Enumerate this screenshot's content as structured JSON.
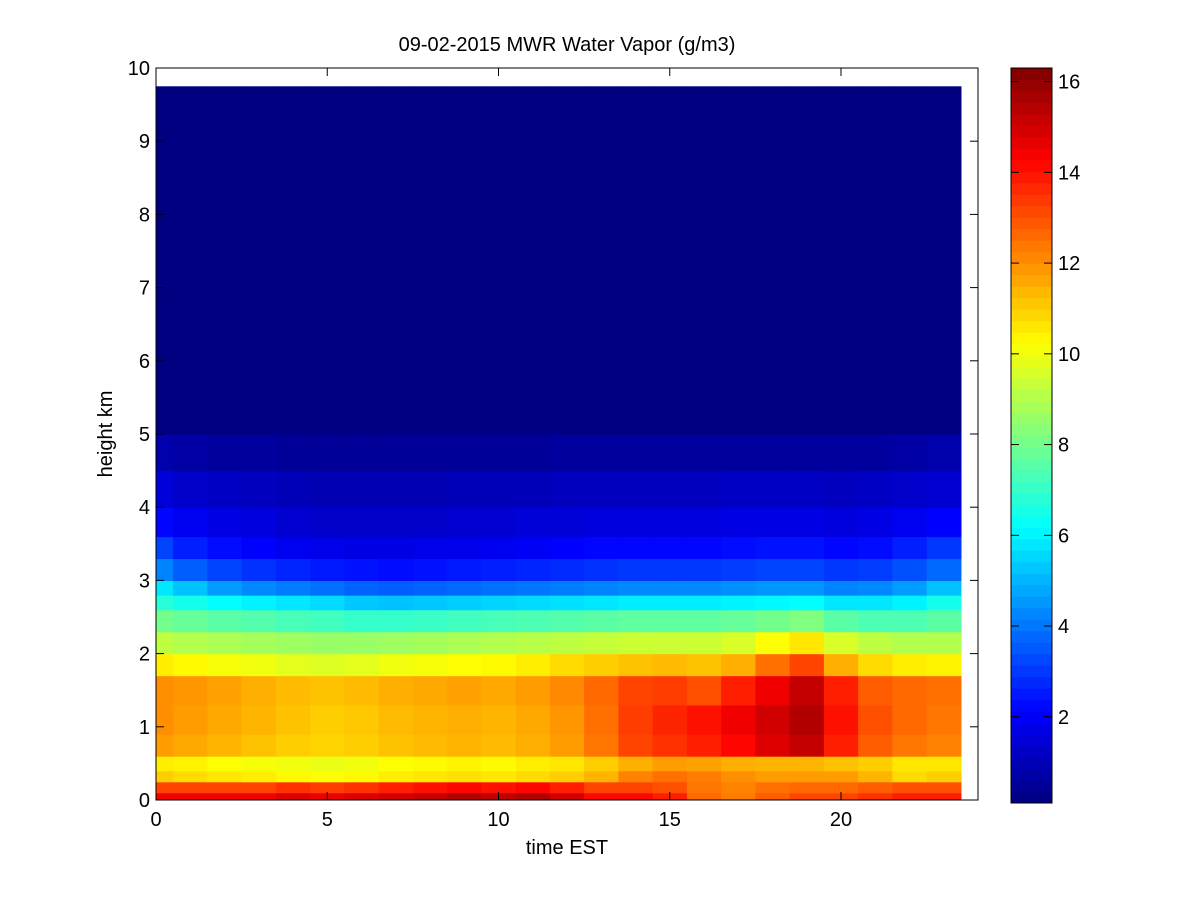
{
  "chart_data": {
    "type": "heatmap",
    "title": "09-02-2015 MWR Water Vapor (g/m3)",
    "xlabel": "time EST",
    "ylabel": "height km",
    "xlim": [
      0,
      24
    ],
    "ylim": [
      0,
      10
    ],
    "x_ticks": [
      "0",
      "5",
      "10",
      "15",
      "20"
    ],
    "y_ticks": [
      "0",
      "1",
      "2",
      "3",
      "4",
      "5",
      "6",
      "7",
      "8",
      "9",
      "10"
    ],
    "colorbar": {
      "colormap": "jet",
      "clim": [
        0.1,
        16.3
      ],
      "ticks": [
        "2",
        "4",
        "6",
        "8",
        "10",
        "12",
        "14",
        "16"
      ]
    },
    "x": [
      0,
      1,
      2,
      3,
      4,
      5,
      6,
      7,
      8,
      9,
      10,
      11,
      12,
      13,
      14,
      15,
      16,
      17,
      18,
      19,
      20,
      21,
      22,
      23
    ],
    "y_edges": [
      0,
      0.1,
      0.25,
      0.4,
      0.6,
      0.9,
      1.3,
      1.7,
      2.0,
      2.3,
      2.6,
      2.8,
      3.0,
      3.3,
      3.6,
      4.0,
      4.5,
      5.0,
      9.75
    ],
    "z": [
      [
        14.5,
        14.5,
        14.5,
        14.5,
        14.8,
        14.6,
        14.8,
        15.0,
        15.2,
        15.5,
        15.3,
        15.5,
        15.0,
        14.2,
        14.2,
        13.8,
        12.6,
        12.3,
        12.8,
        13.2,
        13.2,
        13.5,
        13.8,
        13.8
      ],
      [
        13.2,
        13.2,
        13.2,
        13.2,
        13.5,
        13.3,
        13.5,
        13.8,
        14.0,
        14.2,
        14.0,
        14.2,
        13.8,
        13.2,
        13.2,
        13.0,
        12.4,
        12.2,
        12.5,
        12.6,
        12.6,
        12.8,
        13.0,
        13.0
      ],
      [
        11.0,
        10.8,
        10.6,
        10.5,
        10.3,
        10.2,
        10.3,
        10.5,
        10.6,
        10.7,
        10.6,
        10.8,
        11.0,
        11.4,
        12.2,
        12.5,
        12.3,
        12.0,
        11.8,
        11.8,
        11.8,
        11.4,
        10.8,
        11.0
      ],
      [
        10.5,
        10.4,
        10.2,
        10.1,
        10.0,
        9.9,
        10.0,
        10.2,
        10.3,
        10.4,
        10.3,
        10.5,
        10.6,
        11.0,
        11.5,
        11.8,
        11.7,
        11.5,
        11.4,
        11.4,
        11.2,
        11.0,
        10.6,
        10.6
      ],
      [
        11.8,
        11.6,
        11.4,
        11.2,
        11.0,
        10.9,
        11.0,
        11.2,
        11.3,
        11.4,
        11.3,
        11.5,
        11.8,
        12.4,
        13.2,
        13.5,
        13.8,
        14.2,
        14.8,
        15.2,
        13.8,
        12.8,
        12.4,
        12.2
      ],
      [
        12.0,
        11.8,
        11.6,
        11.4,
        11.2,
        11.0,
        11.1,
        11.3,
        11.4,
        11.5,
        11.4,
        11.6,
        11.9,
        12.5,
        13.3,
        13.7,
        14.0,
        14.5,
        15.0,
        15.5,
        14.0,
        13.0,
        12.6,
        12.4
      ],
      [
        12.0,
        11.9,
        11.7,
        11.5,
        11.3,
        11.2,
        11.3,
        11.5,
        11.6,
        11.7,
        11.6,
        11.8,
        12.1,
        12.6,
        13.2,
        13.3,
        13.0,
        13.8,
        14.5,
        15.2,
        13.8,
        12.8,
        12.6,
        12.5
      ],
      [
        10.5,
        10.3,
        10.1,
        10.0,
        9.8,
        9.7,
        9.8,
        10.0,
        10.1,
        10.2,
        10.3,
        10.5,
        10.8,
        11.0,
        11.2,
        11.3,
        11.2,
        11.5,
        12.5,
        13.2,
        11.5,
        10.8,
        10.5,
        10.4
      ],
      [
        9.2,
        9.0,
        8.9,
        8.8,
        8.7,
        8.6,
        8.6,
        8.7,
        8.8,
        8.9,
        9.0,
        9.1,
        9.2,
        9.3,
        9.4,
        9.4,
        9.4,
        9.6,
        10.2,
        10.6,
        9.6,
        9.2,
        9.0,
        9.0
      ],
      [
        8.0,
        7.8,
        7.6,
        7.5,
        7.3,
        7.2,
        7.0,
        7.0,
        7.1,
        7.2,
        7.3,
        7.4,
        7.5,
        7.6,
        7.7,
        7.7,
        7.7,
        7.8,
        8.0,
        8.2,
        7.6,
        7.4,
        7.4,
        7.6
      ],
      [
        6.8,
        6.5,
        6.2,
        6.0,
        5.8,
        5.6,
        5.3,
        5.2,
        5.3,
        5.4,
        5.5,
        5.6,
        5.7,
        5.8,
        5.9,
        5.9,
        5.9,
        6.0,
        6.1,
        6.2,
        5.8,
        5.8,
        6.0,
        6.5
      ],
      [
        5.8,
        5.2,
        4.6,
        4.3,
        4.1,
        3.9,
        3.7,
        3.6,
        3.7,
        3.8,
        3.9,
        4.0,
        4.1,
        4.2,
        4.3,
        4.3,
        4.3,
        4.4,
        4.5,
        4.5,
        4.2,
        4.3,
        4.6,
        5.2
      ],
      [
        4.2,
        3.6,
        3.2,
        2.9,
        2.7,
        2.5,
        2.4,
        2.3,
        2.4,
        2.5,
        2.6,
        2.7,
        2.8,
        2.9,
        3.0,
        3.0,
        3.0,
        3.1,
        3.2,
        3.2,
        3.0,
        3.1,
        3.4,
        3.8
      ],
      [
        3.2,
        2.6,
        2.3,
        2.1,
        1.9,
        1.8,
        1.7,
        1.7,
        1.8,
        1.8,
        1.9,
        2.0,
        2.1,
        2.2,
        2.2,
        2.2,
        2.2,
        2.3,
        2.4,
        2.4,
        2.2,
        2.3,
        2.6,
        3.0
      ],
      [
        2.2,
        1.9,
        1.7,
        1.6,
        1.4,
        1.3,
        1.3,
        1.3,
        1.3,
        1.4,
        1.4,
        1.5,
        1.5,
        1.6,
        1.6,
        1.6,
        1.6,
        1.7,
        1.7,
        1.7,
        1.6,
        1.7,
        1.9,
        2.1
      ],
      [
        1.5,
        1.3,
        1.2,
        1.1,
        1.0,
        0.9,
        0.9,
        0.9,
        0.9,
        1.0,
        1.0,
        1.0,
        1.1,
        1.1,
        1.1,
        1.1,
        1.1,
        1.2,
        1.2,
        1.2,
        1.1,
        1.2,
        1.3,
        1.4
      ],
      [
        0.8,
        0.7,
        0.6,
        0.6,
        0.5,
        0.5,
        0.5,
        0.5,
        0.5,
        0.5,
        0.5,
        0.5,
        0.6,
        0.6,
        0.6,
        0.6,
        0.6,
        0.6,
        0.6,
        0.6,
        0.6,
        0.6,
        0.7,
        0.8
      ],
      [
        0.1,
        0.1,
        0.1,
        0.1,
        0.1,
        0.1,
        0.1,
        0.1,
        0.1,
        0.1,
        0.1,
        0.1,
        0.1,
        0.1,
        0.1,
        0.1,
        0.1,
        0.1,
        0.1,
        0.1,
        0.1,
        0.1,
        0.1,
        0.1
      ]
    ]
  }
}
